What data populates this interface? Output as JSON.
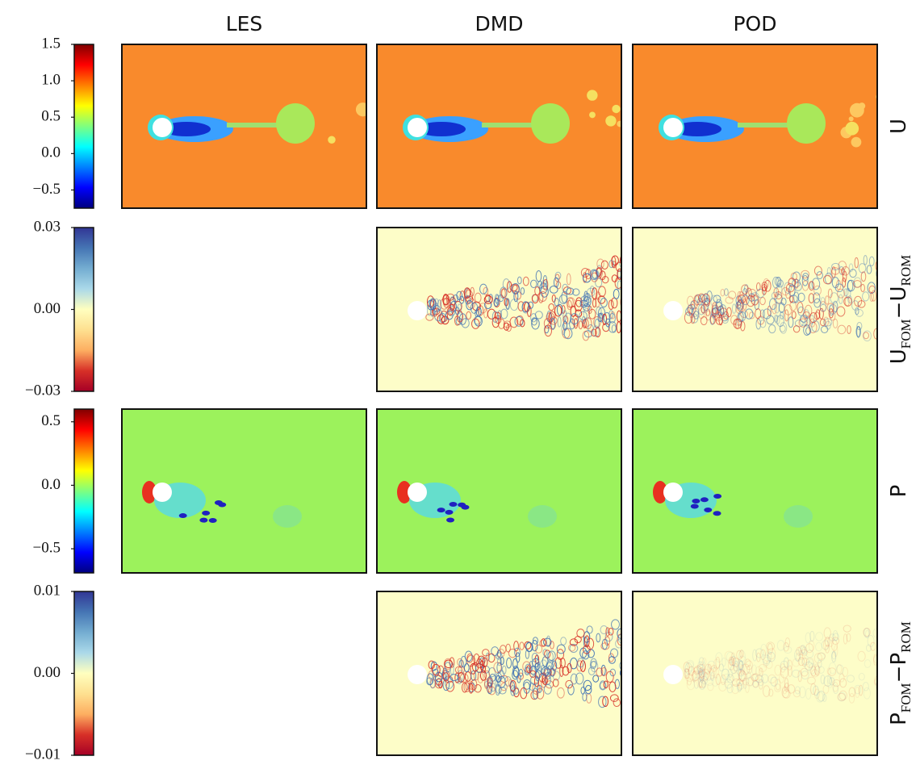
{
  "columns": [
    "LES",
    "DMD",
    "POD"
  ],
  "rows": [
    {
      "label": {
        "main": "U"
      },
      "colormap": "jet",
      "lim": [
        -0.75,
        1.5
      ],
      "ticks": [
        {
          "value": 1.5,
          "label": "1.5"
        },
        {
          "value": 1.0,
          "label": "1.0"
        },
        {
          "value": 0.5,
          "label": "0.5"
        },
        {
          "value": 0.0,
          "label": "0.0"
        },
        {
          "value": -0.5,
          "label": "−0.5"
        }
      ],
      "panels": [
        true,
        true,
        true
      ]
    },
    {
      "label": {
        "main": "U",
        "sub": "FOM",
        "op": "−",
        "main2": "U",
        "sub2": "ROM"
      },
      "colormap": "RdYlBu",
      "lim": [
        -0.03,
        0.03
      ],
      "ticks": [
        {
          "value": 0.03,
          "label": "0.03"
        },
        {
          "value": 0.0,
          "label": "0.00"
        },
        {
          "value": -0.03,
          "label": "−0.03"
        }
      ],
      "panels": [
        false,
        true,
        true
      ]
    },
    {
      "label": {
        "main": "P"
      },
      "colormap": "jet",
      "lim": [
        -0.69,
        0.6
      ],
      "ticks": [
        {
          "value": 0.5,
          "label": "0.5"
        },
        {
          "value": 0.0,
          "label": "0.0"
        },
        {
          "value": -0.5,
          "label": "−0.5"
        }
      ],
      "panels": [
        true,
        true,
        true
      ]
    },
    {
      "label": {
        "main": "P",
        "sub": "FOM",
        "op": "−",
        "main2": "P",
        "sub2": "ROM"
      },
      "colormap": "RdYlBu",
      "lim": [
        -0.01,
        0.01
      ],
      "ticks": [
        {
          "value": 0.01,
          "label": "0.01"
        },
        {
          "value": 0.0,
          "label": "0.00"
        },
        {
          "value": -0.01,
          "label": "−0.01"
        }
      ],
      "panels": [
        false,
        true,
        true
      ]
    }
  ]
}
